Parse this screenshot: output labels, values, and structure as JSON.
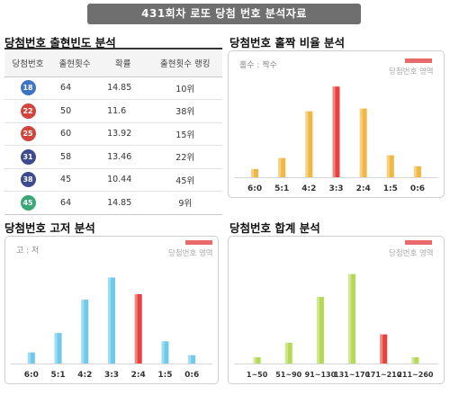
{
  "banner": {
    "title": "431회차 로또 당첨 번호 분석자료"
  },
  "sections": {
    "freq": "당첨번호 출현빈도 분석",
    "odd_even": "당첨번호 홀짝 비율 분석",
    "high_low": "당첨번호 고저 분석",
    "sum": "당첨번호 합계 분석"
  },
  "freq_table": {
    "headers": [
      "당첨번호",
      "출현횟수",
      "확률",
      "출현횟수 랭킹"
    ],
    "rows": [
      {
        "number": "18",
        "count": "64",
        "prob": "14.85",
        "rank": "10위",
        "color": "#3f74c4"
      },
      {
        "number": "22",
        "count": "50",
        "prob": "11.6",
        "rank": "38위",
        "color": "#d2453c"
      },
      {
        "number": "25",
        "count": "60",
        "prob": "13.92",
        "rank": "15위",
        "color": "#d2453c"
      },
      {
        "number": "31",
        "count": "58",
        "prob": "13.46",
        "rank": "22위",
        "color": "#3e4b8e"
      },
      {
        "number": "38",
        "count": "45",
        "prob": "10.44",
        "rank": "45위",
        "color": "#3e4b8e"
      },
      {
        "number": "45",
        "count": "64",
        "prob": "14.85",
        "rank": "9위",
        "color": "#3aa876"
      }
    ]
  },
  "legend_label": "당첨번호 영역",
  "chart_data": [
    {
      "type": "bar",
      "subtitle": "홀수 : 짝수",
      "categories": [
        "6:0",
        "5:1",
        "4:2",
        "3:3",
        "2:4",
        "1:5",
        "0:6"
      ],
      "values": [
        1.5,
        3.5,
        12,
        16.5,
        12.5,
        4,
        2
      ],
      "ylim": [
        0,
        18
      ],
      "highlight_index": 3,
      "color": "#f2b743",
      "highlight_color": "#e8423f"
    },
    {
      "type": "bar",
      "subtitle": "고 : 저",
      "categories": [
        "6:0",
        "5:1",
        "4:2",
        "3:3",
        "2:4",
        "1:5",
        "0:6"
      ],
      "values": [
        2,
        5.5,
        11.5,
        15.5,
        12.5,
        4,
        1.5
      ],
      "ylim": [
        0,
        18
      ],
      "highlight_index": 4,
      "color": "#6ec9ea",
      "highlight_color": "#e8423f"
    },
    {
      "type": "bar",
      "subtitle": "",
      "categories": [
        "1~50",
        "51~90",
        "91~130",
        "131~170",
        "171~210",
        "211~260"
      ],
      "values": [
        1.5,
        5,
        16,
        21.5,
        7,
        1.5
      ],
      "ylim": [
        0,
        24
      ],
      "highlight_index": 4,
      "color": "#b4da55",
      "highlight_color": "#e8423f"
    }
  ]
}
